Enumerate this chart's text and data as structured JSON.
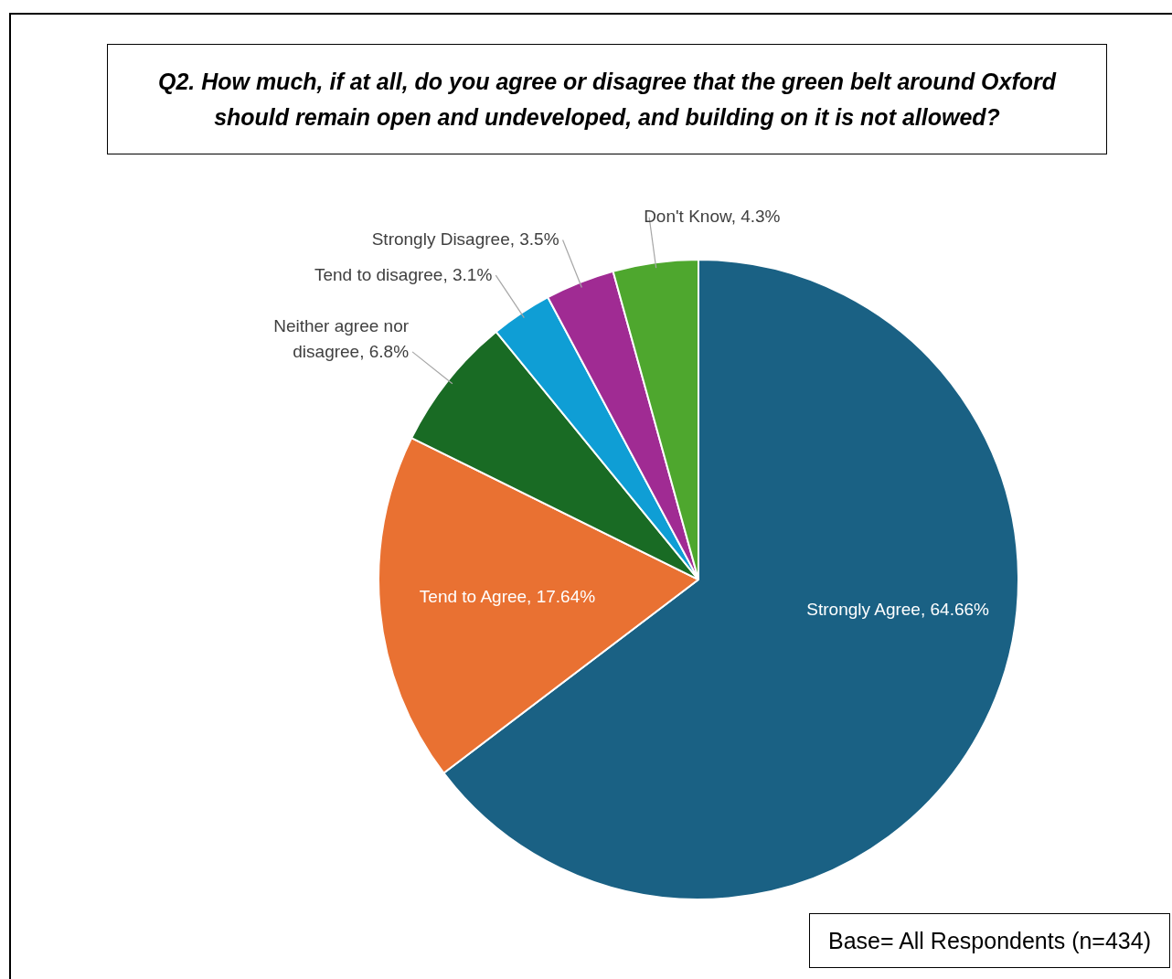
{
  "chart_data": {
    "type": "pie",
    "title": "Q2. How much, if at all, do you agree or disagree that the green belt around Oxford should remain open and undeveloped, and building on it is not allowed?",
    "categories": [
      "Strongly Agree",
      "Tend to Agree",
      "Neither agree nor disagree",
      "Tend to disagree",
      "Strongly Disagree",
      "Don't Know"
    ],
    "values": [
      64.66,
      17.64,
      6.8,
      3.1,
      3.5,
      4.3
    ],
    "value_labels": [
      "64.66%",
      "17.64%",
      "6.8%",
      "3.1%",
      "3.5%",
      "4.3%"
    ],
    "colors": [
      "#1a6184",
      "#e97132",
      "#196b24",
      "#0f9ed5",
      "#a02b93",
      "#4ea72e"
    ],
    "annotations": [
      "Base= All Respondents (n=434)"
    ]
  }
}
